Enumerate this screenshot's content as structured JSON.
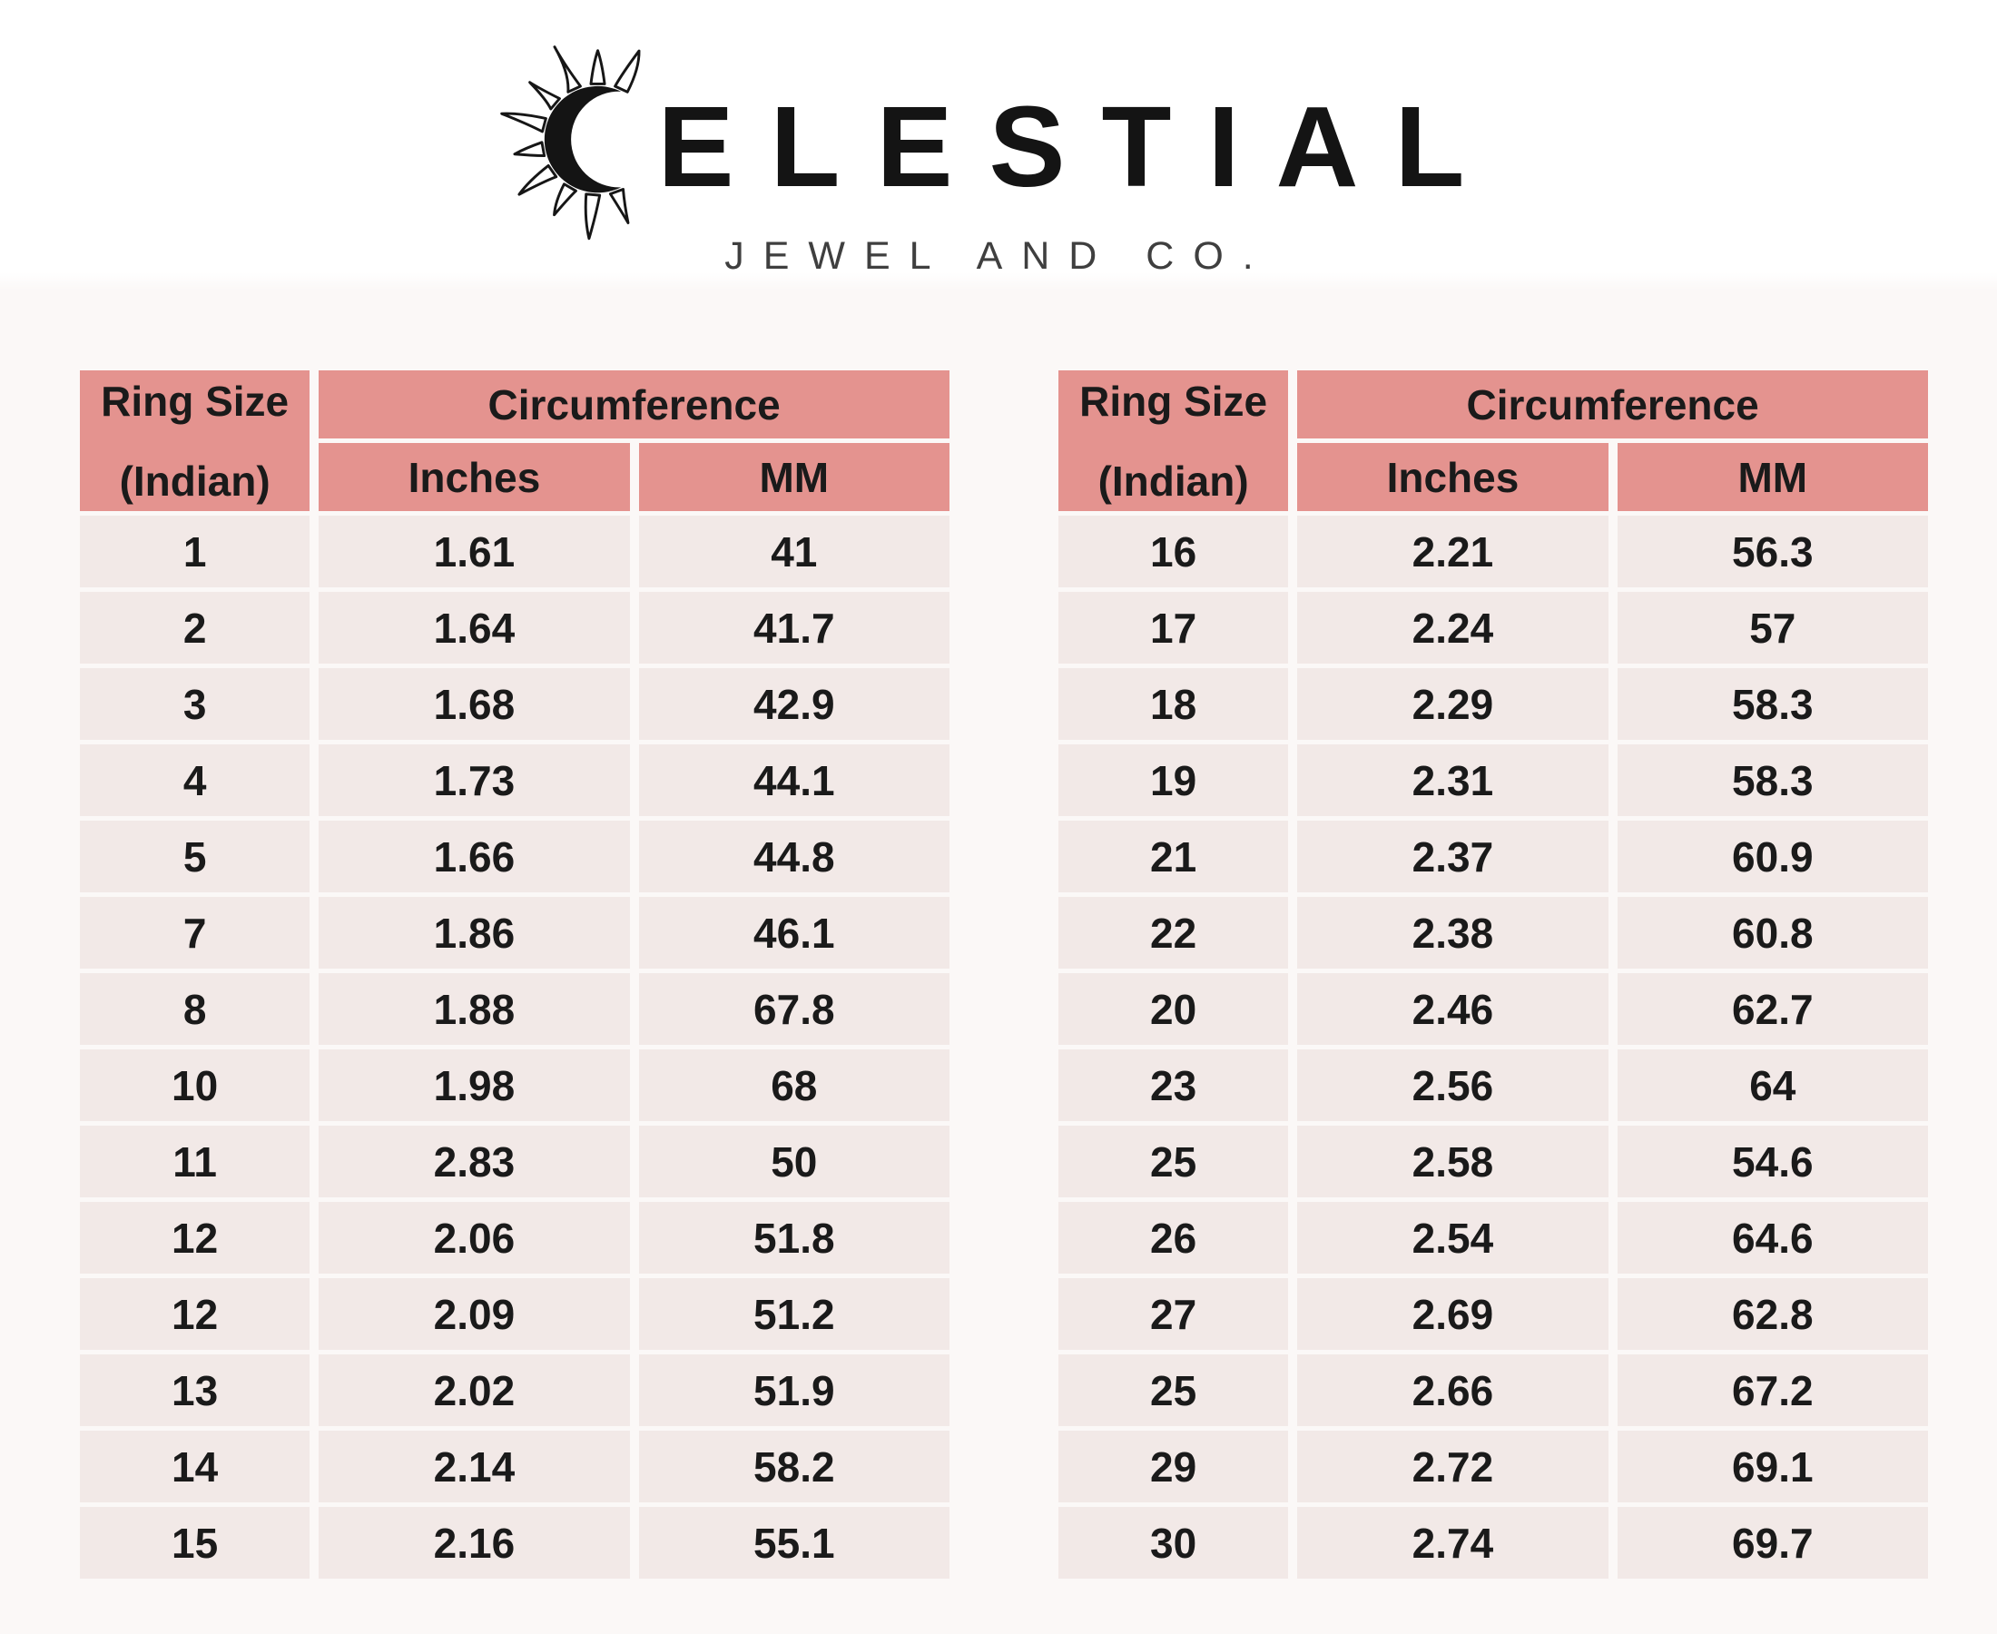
{
  "brand": {
    "name": "CELESTIAL",
    "wordmark_after_icon": "ELESTIAL",
    "tagline": "JEWEL AND CO.",
    "icon": "crescent-sun-icon"
  },
  "tables": {
    "shared_header": {
      "ring_size_line1": "Ring Size",
      "ring_size_line2": "(Indian)",
      "circumference": "Circumference",
      "inches": "Inches",
      "mm": "MM"
    },
    "left": {
      "rows": [
        [
          "1",
          "1.61",
          "41"
        ],
        [
          "2",
          "1.64",
          "41.7"
        ],
        [
          "3",
          "1.68",
          "42.9"
        ],
        [
          "4",
          "1.73",
          "44.1"
        ],
        [
          "5",
          "1.66",
          "44.8"
        ],
        [
          "7",
          "1.86",
          "46.1"
        ],
        [
          "8",
          "1.88",
          "67.8"
        ],
        [
          "10",
          "1.98",
          "68"
        ],
        [
          "11",
          "2.83",
          "50"
        ],
        [
          "12",
          "2.06",
          "51.8"
        ],
        [
          "12",
          "2.09",
          "51.2"
        ],
        [
          "13",
          "2.02",
          "51.9"
        ],
        [
          "14",
          "2.14",
          "58.2"
        ],
        [
          "15",
          "2.16",
          "55.1"
        ]
      ]
    },
    "right": {
      "rows": [
        [
          "16",
          "2.21",
          "56.3"
        ],
        [
          "17",
          "2.24",
          "57"
        ],
        [
          "18",
          "2.29",
          "58.3"
        ],
        [
          "19",
          "2.31",
          "58.3"
        ],
        [
          "21",
          "2.37",
          "60.9"
        ],
        [
          "22",
          "2.38",
          "60.8"
        ],
        [
          "20",
          "2.46",
          "62.7"
        ],
        [
          "23",
          "2.56",
          "64"
        ],
        [
          "25",
          "2.58",
          "54.6"
        ],
        [
          "26",
          "2.54",
          "64.6"
        ],
        [
          "27",
          "2.69",
          "62.8"
        ],
        [
          "25",
          "2.66",
          "67.2"
        ],
        [
          "29",
          "2.72",
          "69.1"
        ],
        [
          "30",
          "2.74",
          "69.7"
        ]
      ]
    }
  },
  "colors": {
    "header_bg": "#e4938f",
    "row_bg": "#f2e9e7",
    "text": "#1a1a1a",
    "page_bg": "#fbf8f7"
  }
}
